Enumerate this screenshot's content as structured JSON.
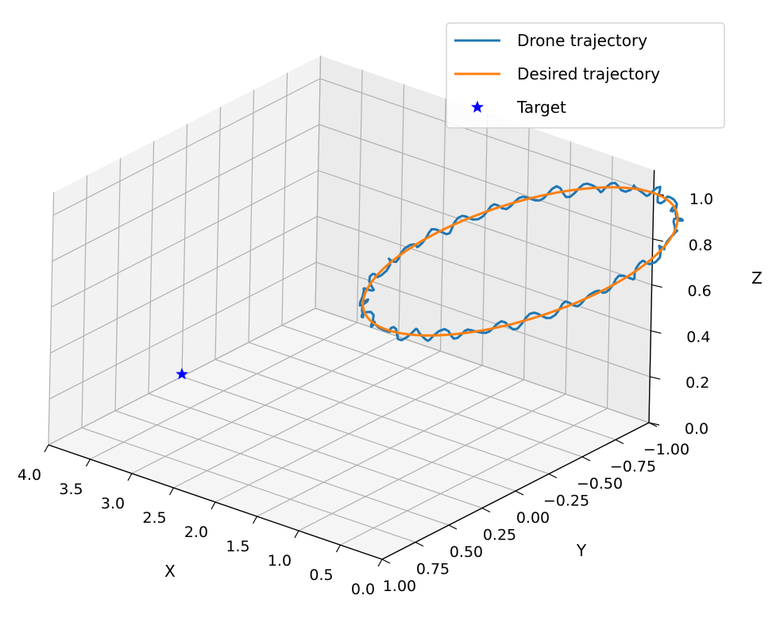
{
  "chart_data": {
    "type": "line3d",
    "xlabel": "X",
    "ylabel": "Y",
    "zlabel": "Z",
    "xlim": [
      0.0,
      4.0
    ],
    "ylim": [
      -1.0,
      1.0
    ],
    "zlim": [
      0.0,
      1.1
    ],
    "xticks": [
      "0.0",
      "0.5",
      "1.0",
      "1.5",
      "2.0",
      "2.5",
      "3.0",
      "3.5",
      "4.0"
    ],
    "yticks": [
      "−1.00",
      "−0.75",
      "−0.50",
      "−0.25",
      "0.00",
      "0.25",
      "0.50",
      "0.75",
      "1.00"
    ],
    "zticks": [
      "0.0",
      "0.2",
      "0.4",
      "0.6",
      "0.8",
      "1.0"
    ],
    "grid": true,
    "legend_position": "upper-right",
    "colors": {
      "drone": "#1f77b4",
      "desired": "#ff7f0e",
      "target": "#0000ff"
    },
    "series": [
      {
        "name": "Drone trajectory",
        "type": "line",
        "shape": "circle",
        "center": [
          0.0,
          0.0,
          1.0
        ],
        "radius": 1.0,
        "plane": "xy",
        "noise": 0.035
      },
      {
        "name": "Desired trajectory",
        "type": "line",
        "shape": "circle",
        "center": [
          0.0,
          0.0,
          1.0
        ],
        "radius": 1.0,
        "plane": "xy"
      },
      {
        "name": "Target",
        "type": "scatter",
        "marker": "star",
        "points": [
          [
            4.0,
            0.0,
            0.0
          ]
        ]
      }
    ]
  }
}
